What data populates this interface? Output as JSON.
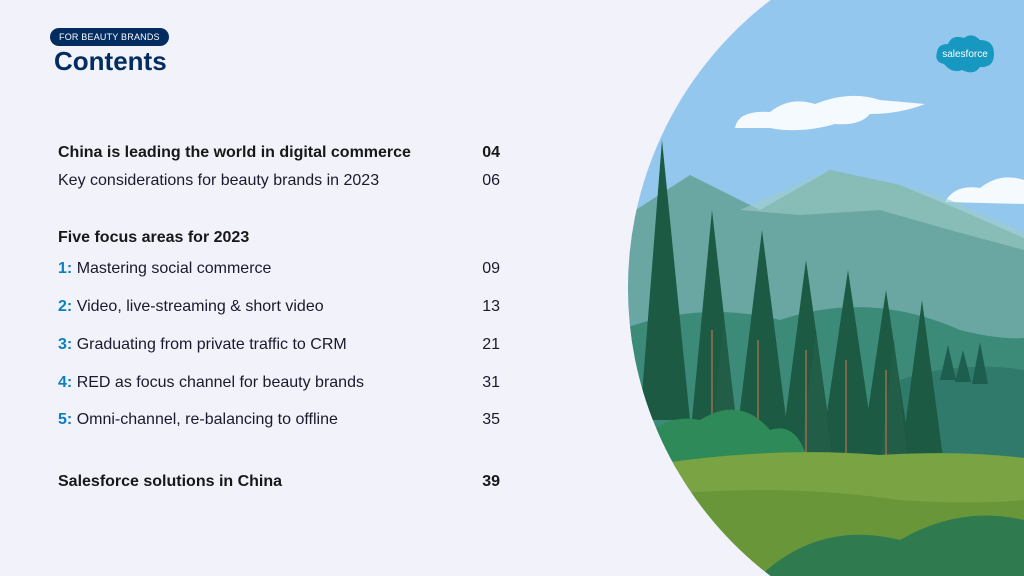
{
  "header": {
    "badge": "FOR BEAUTY BRANDS",
    "title": "Contents"
  },
  "toc": {
    "entries_top": [
      {
        "label": "China is leading the world in digital commerce",
        "page": "04"
      },
      {
        "label": "Key considerations for beauty brands in 2023",
        "page": "06"
      }
    ],
    "section_heading": "Five focus areas for 2023",
    "focus_areas": [
      {
        "num": "1:",
        "label": "Mastering social commerce",
        "page": "09"
      },
      {
        "num": "2:",
        "label": "Video, live-streaming & short video",
        "page": "13"
      },
      {
        "num": "3:",
        "label": "Graduating from private traffic to CRM",
        "page": "21"
      },
      {
        "num": "4:",
        "label": "RED as focus channel for beauty brands",
        "page": "31"
      },
      {
        "num": "5:",
        "label": "Omni-channel, re-balancing to offline",
        "page": "35"
      }
    ],
    "final_entry": {
      "label": "Salesforce solutions in China",
      "page": "39"
    }
  },
  "logo": {
    "text": "salesforce"
  },
  "colors": {
    "background": "#f1f2fa",
    "navy": "#032d60",
    "accent_blue": "#0b7fc2",
    "logo_blue": "#1798c1"
  }
}
